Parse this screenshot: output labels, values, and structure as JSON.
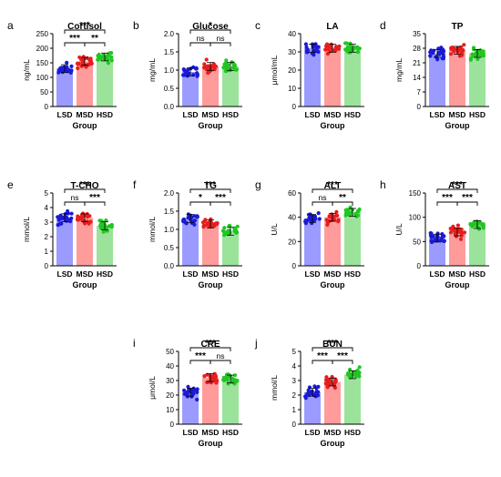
{
  "chart_data": [
    {
      "letter": "a",
      "title": "Cortisol",
      "type": "bar",
      "xlabel": "Group",
      "ylabel": "ng/mL",
      "categories": [
        "LSD",
        "MSD",
        "HSD"
      ],
      "values": [
        130,
        155,
        170
      ],
      "ylim": [
        0,
        250
      ],
      "yticks": [
        "0",
        "50",
        "100",
        "150",
        "200",
        "250"
      ],
      "brackets": [
        {
          "from": 0,
          "to": 1,
          "label": "***",
          "level": 1
        },
        {
          "from": 1,
          "to": 2,
          "label": "**",
          "level": 1
        },
        {
          "from": 0,
          "to": 2,
          "label": "***",
          "level": 2
        }
      ]
    },
    {
      "letter": "b",
      "title": "Glucose",
      "type": "bar",
      "xlabel": "Group",
      "ylabel": "mg/mL",
      "categories": [
        "LSD",
        "MSD",
        "HSD"
      ],
      "values": [
        0.95,
        1.1,
        1.1
      ],
      "ylim": [
        0,
        2.0
      ],
      "yticks": [
        "0.0",
        "0.5",
        "1.0",
        "1.5",
        "2.0"
      ],
      "brackets": [
        {
          "from": 0,
          "to": 1,
          "label": "ns",
          "level": 1
        },
        {
          "from": 1,
          "to": 2,
          "label": "ns",
          "level": 1
        },
        {
          "from": 0,
          "to": 2,
          "label": "*",
          "level": 2
        }
      ]
    },
    {
      "letter": "c",
      "title": "LA",
      "type": "bar",
      "xlabel": "Group",
      "ylabel": "μmol/mL",
      "categories": [
        "LSD",
        "MSD",
        "HSD"
      ],
      "values": [
        32,
        32,
        32
      ],
      "ylim": [
        0,
        40
      ],
      "yticks": [
        "0",
        "10",
        "20",
        "30",
        "40"
      ],
      "brackets": []
    },
    {
      "letter": "d",
      "title": "TP",
      "type": "bar",
      "xlabel": "Group",
      "ylabel": "mg/mL",
      "categories": [
        "LSD",
        "MSD",
        "HSD"
      ],
      "values": [
        25.5,
        27,
        25.5
      ],
      "ylim": [
        0,
        35
      ],
      "yticks": [
        "0",
        "7",
        "14",
        "21",
        "28",
        "35"
      ],
      "brackets": []
    },
    {
      "letter": "e",
      "title": "T-CHO",
      "type": "bar",
      "xlabel": "Group",
      "ylabel": "mmol/L",
      "categories": [
        "LSD",
        "MSD",
        "HSD"
      ],
      "values": [
        3.3,
        3.3,
        2.75
      ],
      "ylim": [
        0,
        5
      ],
      "yticks": [
        "0",
        "1",
        "2",
        "3",
        "4",
        "5"
      ],
      "brackets": [
        {
          "from": 0,
          "to": 1,
          "label": "ns",
          "level": 1
        },
        {
          "from": 1,
          "to": 2,
          "label": "***",
          "level": 1
        },
        {
          "from": 0,
          "to": 2,
          "label": "***",
          "level": 2
        }
      ]
    },
    {
      "letter": "f",
      "title": "TG",
      "type": "bar",
      "xlabel": "Group",
      "ylabel": "mmol/L",
      "categories": [
        "LSD",
        "MSD",
        "HSD"
      ],
      "values": [
        1.3,
        1.15,
        0.95
      ],
      "ylim": [
        0,
        2.0
      ],
      "yticks": [
        "0.0",
        "0.5",
        "1.0",
        "1.5",
        "2.0"
      ],
      "brackets": [
        {
          "from": 0,
          "to": 1,
          "label": "*",
          "level": 1
        },
        {
          "from": 1,
          "to": 2,
          "label": "***",
          "level": 1
        },
        {
          "from": 0,
          "to": 2,
          "label": "***",
          "level": 2
        }
      ]
    },
    {
      "letter": "g",
      "title": "ALT",
      "type": "bar",
      "xlabel": "Group",
      "ylabel": "U/L",
      "categories": [
        "LSD",
        "MSD",
        "HSD"
      ],
      "values": [
        39,
        40,
        44
      ],
      "ylim": [
        0,
        60
      ],
      "yticks": [
        "0",
        "20",
        "40",
        "60"
      ],
      "brackets": [
        {
          "from": 0,
          "to": 1,
          "label": "ns",
          "level": 1
        },
        {
          "from": 1,
          "to": 2,
          "label": "**",
          "level": 1
        },
        {
          "from": 0,
          "to": 2,
          "label": "***",
          "level": 2
        }
      ]
    },
    {
      "letter": "h",
      "title": "AST",
      "type": "bar",
      "xlabel": "Group",
      "ylabel": "U/L",
      "categories": [
        "LSD",
        "MSD",
        "HSD"
      ],
      "values": [
        57,
        70,
        85
      ],
      "ylim": [
        0,
        150
      ],
      "yticks": [
        "0",
        "50",
        "100",
        "150"
      ],
      "brackets": [
        {
          "from": 0,
          "to": 1,
          "label": "***",
          "level": 1
        },
        {
          "from": 1,
          "to": 2,
          "label": "***",
          "level": 1
        },
        {
          "from": 0,
          "to": 2,
          "label": "***",
          "level": 2
        }
      ]
    },
    {
      "letter": "i",
      "title": "CRE",
      "type": "bar",
      "xlabel": "Group",
      "ylabel": "μmol/L",
      "categories": [
        "LSD",
        "MSD",
        "HSD"
      ],
      "values": [
        22,
        32,
        31
      ],
      "ylim": [
        0,
        50
      ],
      "yticks": [
        "0",
        "10",
        "20",
        "30",
        "40",
        "50"
      ],
      "brackets": [
        {
          "from": 0,
          "to": 1,
          "label": "***",
          "level": 1
        },
        {
          "from": 1,
          "to": 2,
          "label": "ns",
          "level": 1
        },
        {
          "from": 0,
          "to": 2,
          "label": "***",
          "level": 2
        }
      ]
    },
    {
      "letter": "j",
      "title": "BUN",
      "type": "bar",
      "xlabel": "Group",
      "ylabel": "mmol/L",
      "categories": [
        "LSD",
        "MSD",
        "HSD"
      ],
      "values": [
        2.2,
        2.9,
        3.4
      ],
      "ylim": [
        0,
        5
      ],
      "yticks": [
        "0",
        "1",
        "2",
        "3",
        "4",
        "5"
      ],
      "brackets": [
        {
          "from": 0,
          "to": 1,
          "label": "***",
          "level": 1
        },
        {
          "from": 1,
          "to": 2,
          "label": "***",
          "level": 1
        },
        {
          "from": 0,
          "to": 2,
          "label": "***",
          "level": 2
        }
      ]
    }
  ],
  "colors": {
    "bars": [
      "#9b9bff",
      "#ff9b9b",
      "#9be39b"
    ],
    "points": [
      "#1a1ad6",
      "#e61e1e",
      "#22c522"
    ]
  }
}
